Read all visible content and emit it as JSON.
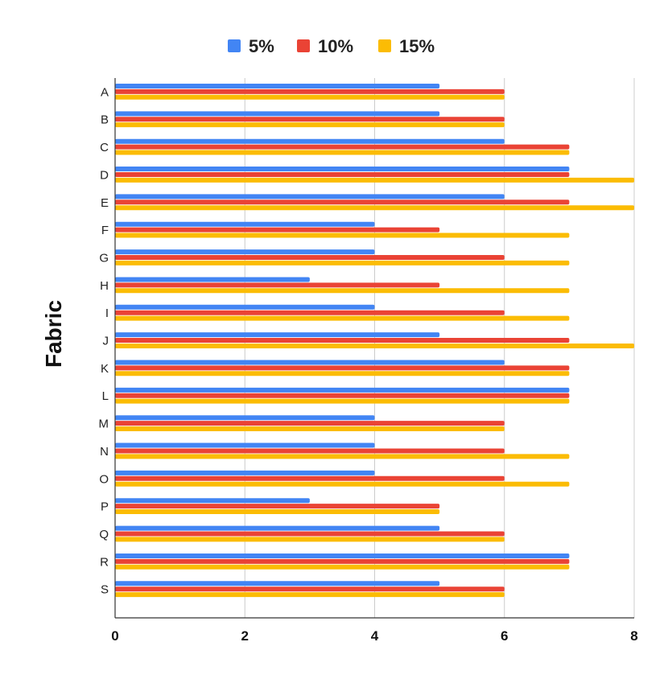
{
  "chart_data": {
    "type": "bar",
    "orientation": "horizontal",
    "title": "",
    "xlabel": "",
    "ylabel": "Fabric",
    "categories": [
      "A",
      "B",
      "C",
      "D",
      "E",
      "F",
      "G",
      "H",
      "I",
      "J",
      "K",
      "L",
      "M",
      "N",
      "O",
      "P",
      "Q",
      "R",
      "S"
    ],
    "series": [
      {
        "name": "5%",
        "color": "#4285F4",
        "values": [
          5,
          5,
          6,
          7,
          6,
          4,
          4,
          3,
          4,
          5,
          6,
          7,
          4,
          4,
          4,
          3,
          5,
          7,
          5
        ]
      },
      {
        "name": "10%",
        "color": "#EA4335",
        "values": [
          6,
          6,
          7,
          7,
          7,
          5,
          6,
          5,
          6,
          7,
          7,
          7,
          6,
          6,
          6,
          5,
          6,
          7,
          6
        ]
      },
      {
        "name": "15%",
        "color": "#FBBC04",
        "values": [
          6,
          6,
          7,
          8,
          8,
          7,
          7,
          7,
          7,
          8,
          7,
          7,
          6,
          7,
          7,
          5,
          6,
          7,
          6
        ]
      }
    ],
    "xlim": [
      0,
      8
    ],
    "xticks": [
      "0",
      "2",
      "4",
      "6",
      "8"
    ],
    "grid": true,
    "legend_position": "top"
  }
}
